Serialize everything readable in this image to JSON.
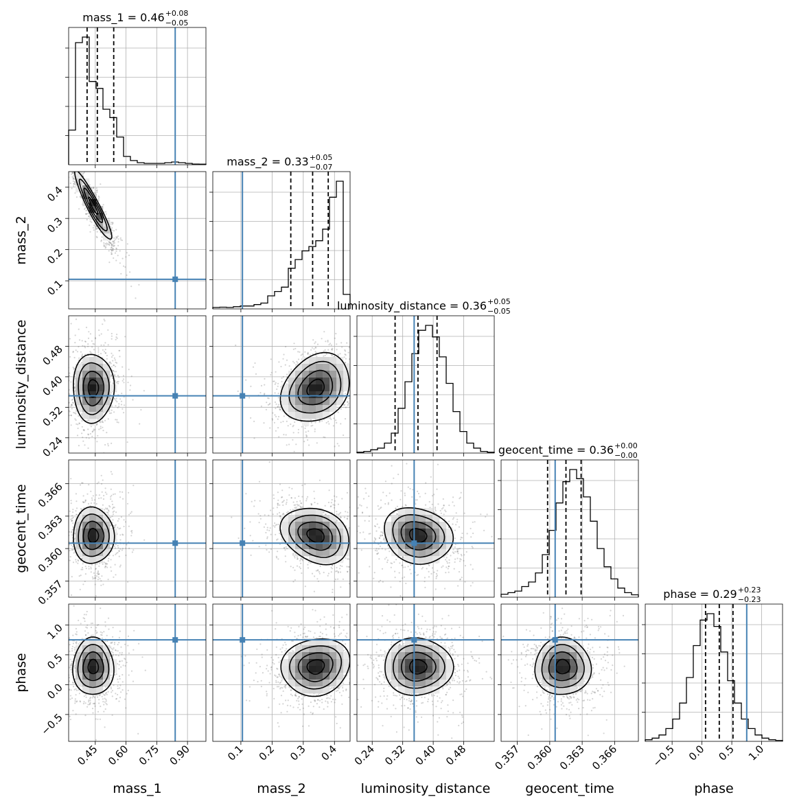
{
  "chart_data": {
    "type": "corner",
    "parameters": [
      {
        "name": "mass_1",
        "label": "mass_1",
        "range": [
          0.32,
          0.99
        ],
        "ticks": [
          0.45,
          0.6,
          0.75,
          0.9
        ],
        "tick_labels": [
          "0.45",
          "0.60",
          "0.75",
          "0.90"
        ],
        "truth": 0.84,
        "title": {
          "main": "mass_1 = 0.46",
          "sup": "+0.08",
          "sub": "−0.05"
        },
        "quantiles": [
          0.41,
          0.46,
          0.54
        ],
        "hist": [
          0.25,
          0.88,
          0.92,
          0.6,
          0.55,
          0.4,
          0.34,
          0.2,
          0.06,
          0.03,
          0.015,
          0.01,
          0.01,
          0.01,
          0.015,
          0.02,
          0.015,
          0.01,
          0.005,
          0.004
        ]
      },
      {
        "name": "mass_2",
        "label": "mass_2",
        "range": [
          0.01,
          0.45
        ],
        "ticks": [
          0.1,
          0.2,
          0.3,
          0.4
        ],
        "tick_labels": [
          "0.1",
          "0.2",
          "0.3",
          "0.4"
        ],
        "truth": 0.105,
        "title": {
          "main": "mass_2 = 0.33",
          "sup": "+0.05",
          "sub": "−0.07"
        },
        "quantiles": [
          0.26,
          0.33,
          0.38
        ],
        "hist": [
          0.01,
          0.012,
          0.01,
          0.015,
          0.02,
          0.02,
          0.03,
          0.04,
          0.09,
          0.12,
          0.15,
          0.28,
          0.34,
          0.4,
          0.43,
          0.47,
          0.55,
          0.77,
          0.88,
          0.1
        ]
      },
      {
        "name": "luminosity_distance",
        "label": "luminosity_distance",
        "range": [
          0.2,
          0.56
        ],
        "ticks": [
          0.24,
          0.32,
          0.4,
          0.48
        ],
        "tick_labels": [
          "0.24",
          "0.32",
          "0.40",
          "0.48"
        ],
        "truth": 0.35,
        "title": {
          "main": "luminosity_distance = 0.36",
          "sup": "+0.05",
          "sub": "−0.05"
        },
        "quantiles": [
          0.3,
          0.36,
          0.41
        ],
        "hist": [
          0.005,
          0.01,
          0.02,
          0.03,
          0.06,
          0.12,
          0.27,
          0.43,
          0.6,
          0.74,
          0.77,
          0.7,
          0.58,
          0.42,
          0.25,
          0.13,
          0.06,
          0.03,
          0.01,
          0.005
        ]
      },
      {
        "name": "geocent_time",
        "label": "geocent_time",
        "range": [
          0.3555,
          0.3682
        ],
        "ticks": [
          0.357,
          0.36,
          0.363,
          0.366
        ],
        "tick_labels": [
          "0.357",
          "0.360",
          "0.363",
          "0.366"
        ],
        "truth": 0.3605,
        "title": {
          "main": "geocent_time = 0.36",
          "sup": "+0.00",
          "sub": "−0.00"
        },
        "quantiles": [
          0.3598,
          0.3615,
          0.3629
        ],
        "hist": [
          0.01,
          0.015,
          0.02,
          0.035,
          0.05,
          0.08,
          0.14,
          0.22,
          0.31,
          0.38,
          0.42,
          0.39,
          0.33,
          0.25,
          0.16,
          0.1,
          0.06,
          0.03,
          0.015,
          0.008
        ]
      },
      {
        "name": "phase",
        "label": "phase",
        "range": [
          -0.95,
          1.35
        ],
        "ticks": [
          -0.5,
          0.0,
          0.5,
          1.0
        ],
        "tick_labels": [
          "−0.5",
          "0.0",
          "0.5",
          "1.0"
        ],
        "truth": 0.75,
        "title": {
          "main": "phase = 0.29",
          "sup": "+0.23",
          "sub": "−0.23"
        },
        "quantiles": [
          0.06,
          0.29,
          0.52
        ],
        "hist": [
          0.005,
          0.01,
          0.02,
          0.04,
          0.07,
          0.12,
          0.2,
          0.3,
          0.38,
          0.4,
          0.36,
          0.28,
          0.19,
          0.12,
          0.07,
          0.04,
          0.02,
          0.01,
          0.005,
          0.003
        ]
      }
    ],
    "pairs": [
      {
        "x": 0,
        "y": 1,
        "mean": [
          0.44,
          0.34
        ],
        "sd": [
          0.045,
          0.055
        ],
        "rho": -0.93
      },
      {
        "x": 0,
        "y": 2,
        "mean": [
          0.44,
          0.37
        ],
        "sd": [
          0.05,
          0.045
        ],
        "rho": 0.0
      },
      {
        "x": 0,
        "y": 3,
        "mean": [
          0.44,
          0.3612
        ],
        "sd": [
          0.05,
          0.0013
        ],
        "rho": 0.0
      },
      {
        "x": 0,
        "y": 4,
        "mean": [
          0.44,
          0.3
        ],
        "sd": [
          0.05,
          0.24
        ],
        "rho": 0.0
      },
      {
        "x": 1,
        "y": 2,
        "mean": [
          0.34,
          0.37
        ],
        "sd": [
          0.055,
          0.045
        ],
        "rho": 0.25
      },
      {
        "x": 1,
        "y": 3,
        "mean": [
          0.34,
          0.3612
        ],
        "sd": [
          0.055,
          0.0013
        ],
        "rho": -0.25
      },
      {
        "x": 1,
        "y": 4,
        "mean": [
          0.34,
          0.3
        ],
        "sd": [
          0.055,
          0.24
        ],
        "rho": 0.1
      },
      {
        "x": 2,
        "y": 3,
        "mean": [
          0.36,
          0.3612
        ],
        "sd": [
          0.045,
          0.0013
        ],
        "rho": -0.15
      },
      {
        "x": 2,
        "y": 4,
        "mean": [
          0.36,
          0.3
        ],
        "sd": [
          0.045,
          0.24
        ],
        "rho": 0.0
      },
      {
        "x": 3,
        "y": 4,
        "mean": [
          0.3612,
          0.3
        ],
        "sd": [
          0.0013,
          0.24
        ],
        "rho": 0.0
      }
    ],
    "contour_levels_sigma": [
      0.5,
      1.0,
      1.5,
      2.0
    ],
    "truth_color": "#4682b4",
    "grid": true
  }
}
